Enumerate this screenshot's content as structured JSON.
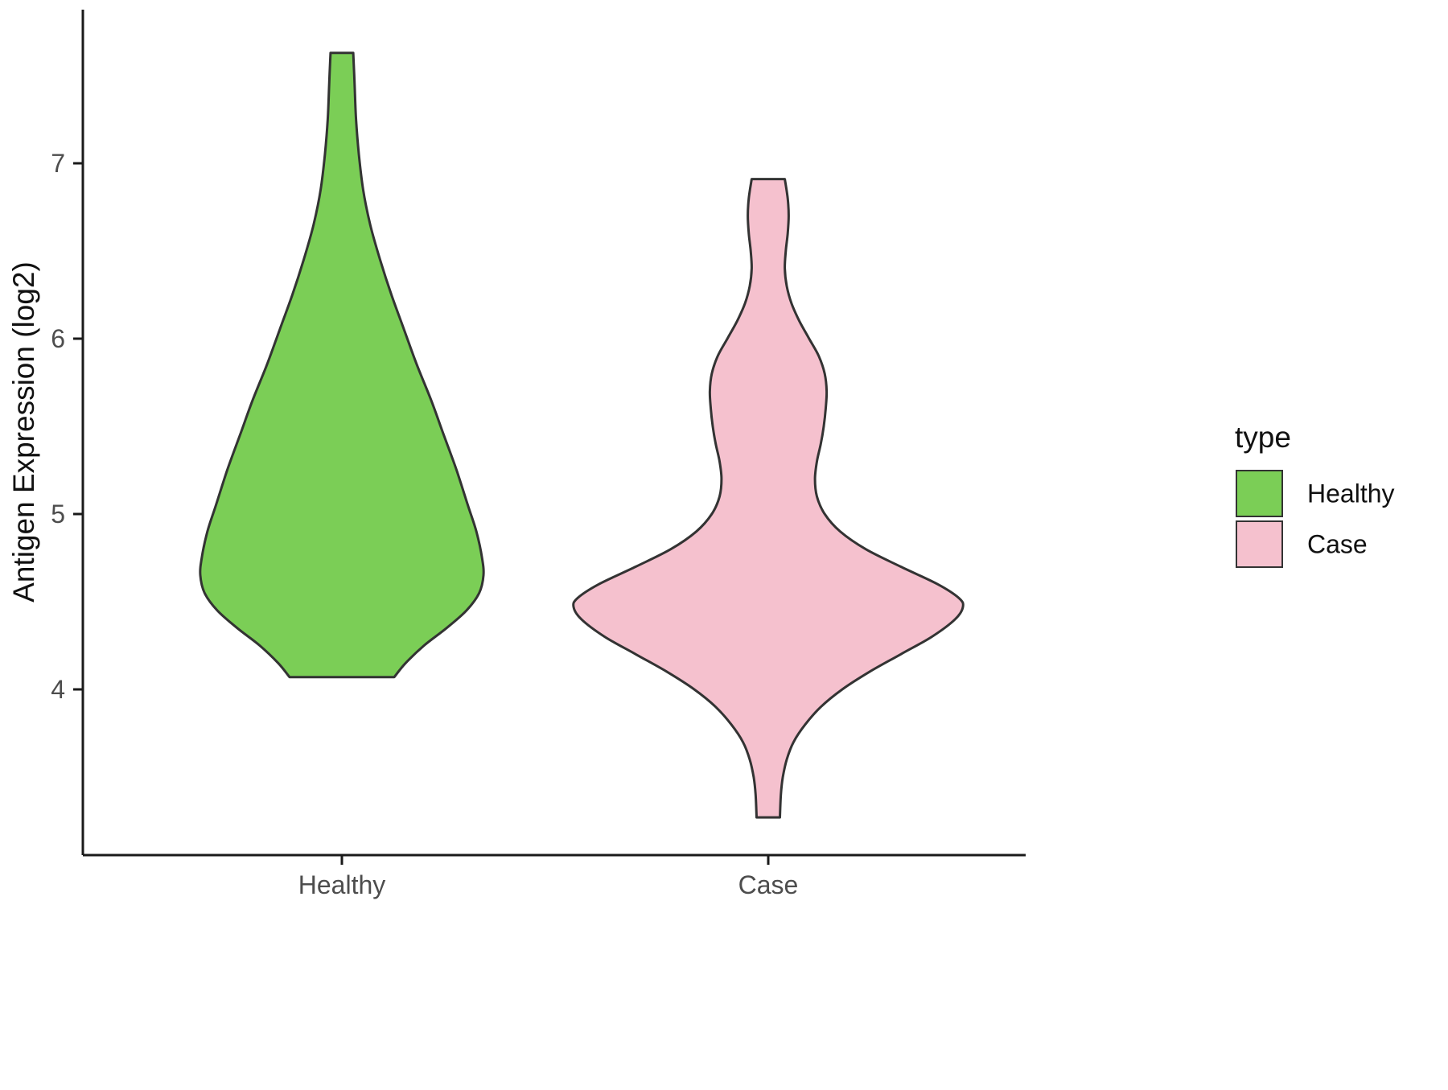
{
  "chart_data": {
    "type": "violin",
    "title": "",
    "xlabel": "",
    "ylabel": "Antigen Expression (log2)",
    "y_ticks": [
      4,
      5,
      6,
      7
    ],
    "y_axis_range": [
      3.1,
      7.8
    ],
    "categories": [
      "Healthy",
      "Case"
    ],
    "grid": "off",
    "outline_color": "#333333",
    "tick_label_color": "#4d4d4d",
    "axis_color": "#1a1a1a",
    "legend": {
      "title": "type",
      "position": "right",
      "items": [
        {
          "label": "Healthy",
          "color": "#7bce56"
        },
        {
          "label": "Case",
          "color": "#f5c1ce"
        }
      ]
    },
    "series": [
      {
        "name": "Healthy",
        "color": "#7bce56",
        "y_min": 4.07,
        "y_max": 7.63,
        "profile": [
          [
            7.63,
            0.08
          ],
          [
            7.45,
            0.09
          ],
          [
            7.25,
            0.1
          ],
          [
            7.05,
            0.12
          ],
          [
            6.85,
            0.15
          ],
          [
            6.65,
            0.2
          ],
          [
            6.45,
            0.27
          ],
          [
            6.25,
            0.35
          ],
          [
            6.05,
            0.44
          ],
          [
            5.85,
            0.53
          ],
          [
            5.65,
            0.63
          ],
          [
            5.45,
            0.72
          ],
          [
            5.25,
            0.81
          ],
          [
            5.05,
            0.89
          ],
          [
            4.9,
            0.95
          ],
          [
            4.75,
            0.99
          ],
          [
            4.65,
            1.0
          ],
          [
            4.55,
            0.97
          ],
          [
            4.45,
            0.88
          ],
          [
            4.35,
            0.74
          ],
          [
            4.25,
            0.58
          ],
          [
            4.15,
            0.45
          ],
          [
            4.07,
            0.37
          ]
        ]
      },
      {
        "name": "Case",
        "color": "#f5c1ce",
        "y_min": 3.27,
        "y_max": 6.91,
        "profile": [
          [
            6.91,
            0.085
          ],
          [
            6.8,
            0.1
          ],
          [
            6.7,
            0.105
          ],
          [
            6.6,
            0.1
          ],
          [
            6.5,
            0.09
          ],
          [
            6.4,
            0.085
          ],
          [
            6.3,
            0.095
          ],
          [
            6.2,
            0.12
          ],
          [
            6.1,
            0.16
          ],
          [
            6.0,
            0.21
          ],
          [
            5.9,
            0.26
          ],
          [
            5.8,
            0.29
          ],
          [
            5.7,
            0.3
          ],
          [
            5.6,
            0.295
          ],
          [
            5.5,
            0.285
          ],
          [
            5.4,
            0.27
          ],
          [
            5.3,
            0.25
          ],
          [
            5.2,
            0.24
          ],
          [
            5.1,
            0.25
          ],
          [
            5.0,
            0.29
          ],
          [
            4.9,
            0.37
          ],
          [
            4.8,
            0.5
          ],
          [
            4.7,
            0.68
          ],
          [
            4.6,
            0.87
          ],
          [
            4.52,
            0.98
          ],
          [
            4.47,
            1.0
          ],
          [
            4.4,
            0.96
          ],
          [
            4.3,
            0.84
          ],
          [
            4.2,
            0.68
          ],
          [
            4.1,
            0.52
          ],
          [
            4.0,
            0.38
          ],
          [
            3.9,
            0.27
          ],
          [
            3.8,
            0.19
          ],
          [
            3.7,
            0.13
          ],
          [
            3.6,
            0.095
          ],
          [
            3.5,
            0.075
          ],
          [
            3.4,
            0.065
          ],
          [
            3.27,
            0.06
          ]
        ]
      }
    ]
  }
}
